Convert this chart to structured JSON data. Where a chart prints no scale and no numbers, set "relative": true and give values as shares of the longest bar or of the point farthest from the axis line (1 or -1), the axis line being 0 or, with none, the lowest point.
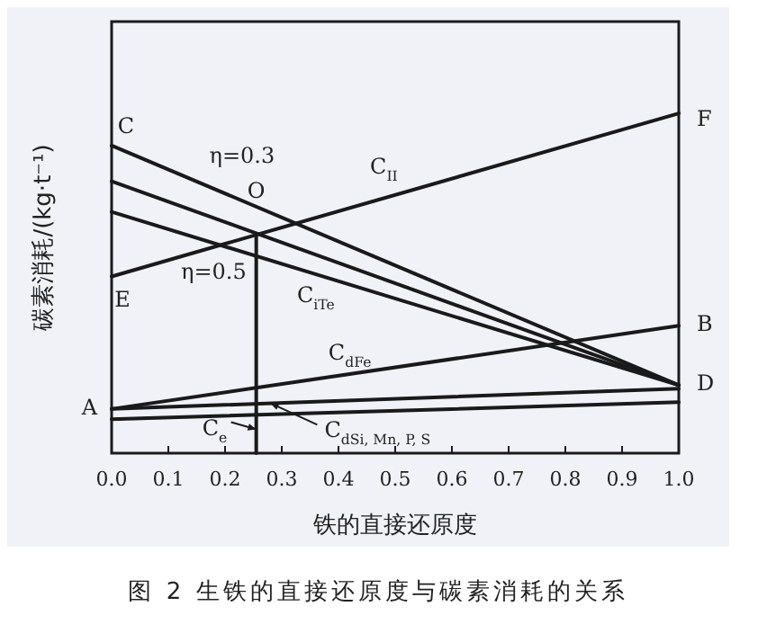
{
  "chart_data": {
    "type": "line",
    "relative": true,
    "title": "图 2  生铁的直接还原度与碳素消耗的关系",
    "xlabel": "铁的直接还原度",
    "ylabel": "碳素消耗/(kg·t⁻¹)",
    "xlim": [
      0,
      1
    ],
    "xticks": [
      {
        "value": 0,
        "label": "0.0"
      },
      0.1,
      0.2,
      0.3,
      0.4,
      0.5,
      0.6,
      0.7,
      0.8,
      0.9,
      {
        "value": 1,
        "label": "1.0"
      }
    ],
    "grid": false,
    "marker": "none",
    "line_style": "solid",
    "series": [
      {
        "color": "#1a1a1a",
        "x": [
          0,
          1
        ],
        "values": [
          0.905,
          0.2
        ]
      },
      {
        "color": "#1a1a1a",
        "x": [
          0,
          1
        ],
        "values": [
          0.8,
          0.2
        ]
      },
      {
        "color": "#1a1a1a",
        "x": [
          0,
          1
        ],
        "values": [
          0.71,
          0.2
        ]
      },
      {
        "color": "#1a1a1a",
        "x": [
          0,
          1
        ],
        "values": [
          0.52,
          1
        ]
      },
      {
        "color": "#1a1a1a",
        "x": [
          0,
          1
        ],
        "values": [
          0.13,
          0.375
        ]
      },
      {
        "color": "#1a1a1a",
        "x": [
          0,
          1
        ],
        "values": [
          0.13,
          0.19
        ]
      },
      {
        "color": "#1a1a1a",
        "x": [
          0,
          1
        ],
        "values": [
          0.1,
          0.15
        ]
      },
      {
        "color": "#1a1a1a",
        "x": [
          0.255,
          0.255
        ],
        "values": [
          0,
          0.64
        ]
      }
    ],
    "annotations": [
      {
        "text": "C",
        "x": 0,
        "y": 0.905
      },
      "η=0.3",
      "C$_{II}$",
      {
        "text": "O",
        "x": 0.255,
        "y": 0.64
      },
      "η=0.5",
      {
        "text": "E",
        "x": 0,
        "y": 0.52
      },
      "C$_{iTe}$",
      {
        "text": "F",
        "x": 1,
        "y": 1
      },
      {
        "text": "B",
        "x": 1,
        "y": 0.375
      },
      {
        "text": "D",
        "x": 1,
        "y": 0.2
      },
      {
        "text": "A",
        "x": 0,
        "y": 0.13
      },
      "C$_{dFe}$",
      {
        "text": "C$_{e}$",
        "x": 0.255,
        "y": 0.07
      },
      {
        "text": "C$_{dSi, Mn, P, S}$",
        "x": 0.28,
        "y": 0.147
      }
    ]
  }
}
